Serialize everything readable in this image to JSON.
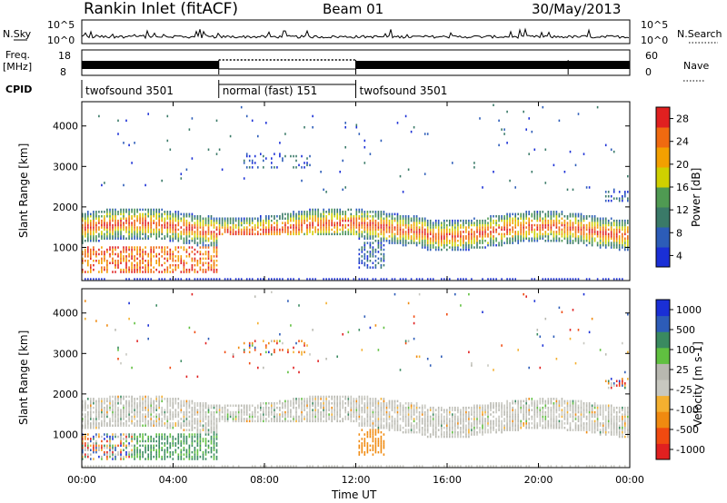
{
  "header": {
    "title": "Rankin Inlet (fitACF)",
    "beam": "Beam 01",
    "date": "30/May/2013"
  },
  "noise_panel": {
    "left_label": "N.Sky",
    "right_label": "N.Search",
    "left_ticks": [
      "10^5",
      "10^0"
    ],
    "right_ticks": [
      "10^5",
      "10^0"
    ]
  },
  "freq_panel": {
    "left_label_1": "Freq.",
    "left_label_2": "[MHz]",
    "right_label": "Nave",
    "left_ticks": [
      "18",
      "8"
    ],
    "right_ticks": [
      "60",
      "0"
    ]
  },
  "cpid": {
    "label": "CPID",
    "segments": [
      {
        "name": "twofsound 3501",
        "start_h": 0,
        "end_h": 6
      },
      {
        "name": "normal (fast) 151",
        "start_h": 6,
        "end_h": 12
      },
      {
        "name": "twofsound 3501",
        "start_h": 12,
        "end_h": 24
      }
    ]
  },
  "x_axis": {
    "label": "Time UT",
    "ticks": [
      "00:00",
      "04:00",
      "08:00",
      "12:00",
      "16:00",
      "20:00",
      "00:00"
    ]
  },
  "colors": {
    "power_scale": [
      "#1a2fd6",
      "#2c5cb8",
      "#3a7a68",
      "#4f9a52",
      "#cfd000",
      "#f3a000",
      "#f06a10",
      "#e02020"
    ],
    "velocity_scale": [
      "#e02020",
      "#f04a10",
      "#f08a10",
      "#f4b030",
      "#c8c8c0",
      "#b8b8b0",
      "#60c040",
      "#3a8a60",
      "#2d5cb8",
      "#1a2fd6"
    ]
  },
  "chart_data": [
    {
      "type": "heatmap",
      "title": "Power",
      "ylabel": "Slant Range [km]",
      "xlabel": "",
      "x_range_hours": [
        0,
        24
      ],
      "ylim": [
        180,
        4600
      ],
      "y_ticks": [
        1000,
        2000,
        3000,
        4000
      ],
      "colorbar_label": "Power [dB]",
      "colorbar_ticks": [
        "28",
        "24",
        "20",
        "16",
        "12",
        "8",
        "4"
      ],
      "colorbar_range": [
        0,
        30
      ]
    },
    {
      "type": "heatmap",
      "title": "Velocity",
      "ylabel": "Slant Range [km]",
      "xlabel": "Time UT",
      "x_range_hours": [
        0,
        24
      ],
      "ylim": [
        180,
        4600
      ],
      "y_ticks": [
        1000,
        2000,
        3000,
        4000
      ],
      "colorbar_label": "Velocity [m s-1]",
      "colorbar_ticks": [
        "1000",
        "500",
        "100",
        "25",
        "-25",
        "-100",
        "-500",
        "-1000"
      ],
      "colorbar_range": [
        -1000,
        1000
      ]
    }
  ]
}
